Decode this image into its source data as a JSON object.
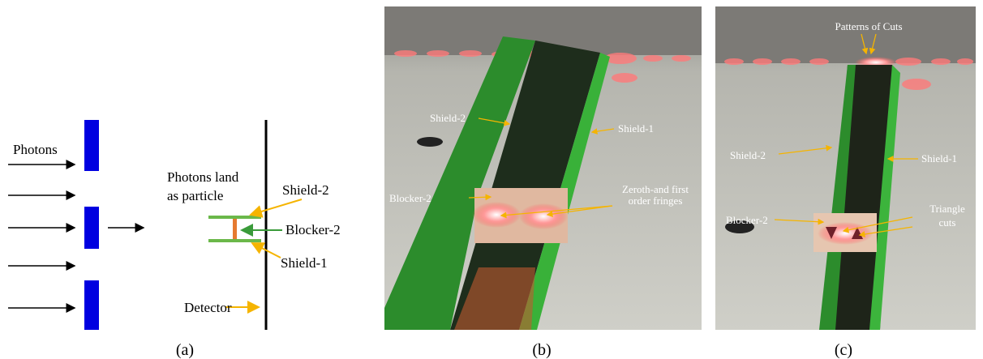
{
  "panel_a": {
    "caption": "(a)",
    "photons": "Photons",
    "landing": [
      "Photons land",
      "as particle"
    ],
    "shield_2": "Shield-2",
    "blocker_2": "Blocker-2",
    "shield_1": "Shield-1",
    "detector": "Detector"
  },
  "panel_b": {
    "caption": "(b)",
    "shield_2": "Shield-2",
    "shield_1": "Shield-1",
    "blocker_2": "Blocker-2",
    "fringes": [
      "Zeroth-and first",
      "order fringes"
    ]
  },
  "panel_c": {
    "caption": "(c)",
    "patterns": "Patterns of Cuts",
    "shield_2": "Shield-2",
    "shield_1": "Shield-1",
    "blocker_2": "Blocker-2",
    "triangle": [
      "Triangle",
      "cuts"
    ]
  }
}
